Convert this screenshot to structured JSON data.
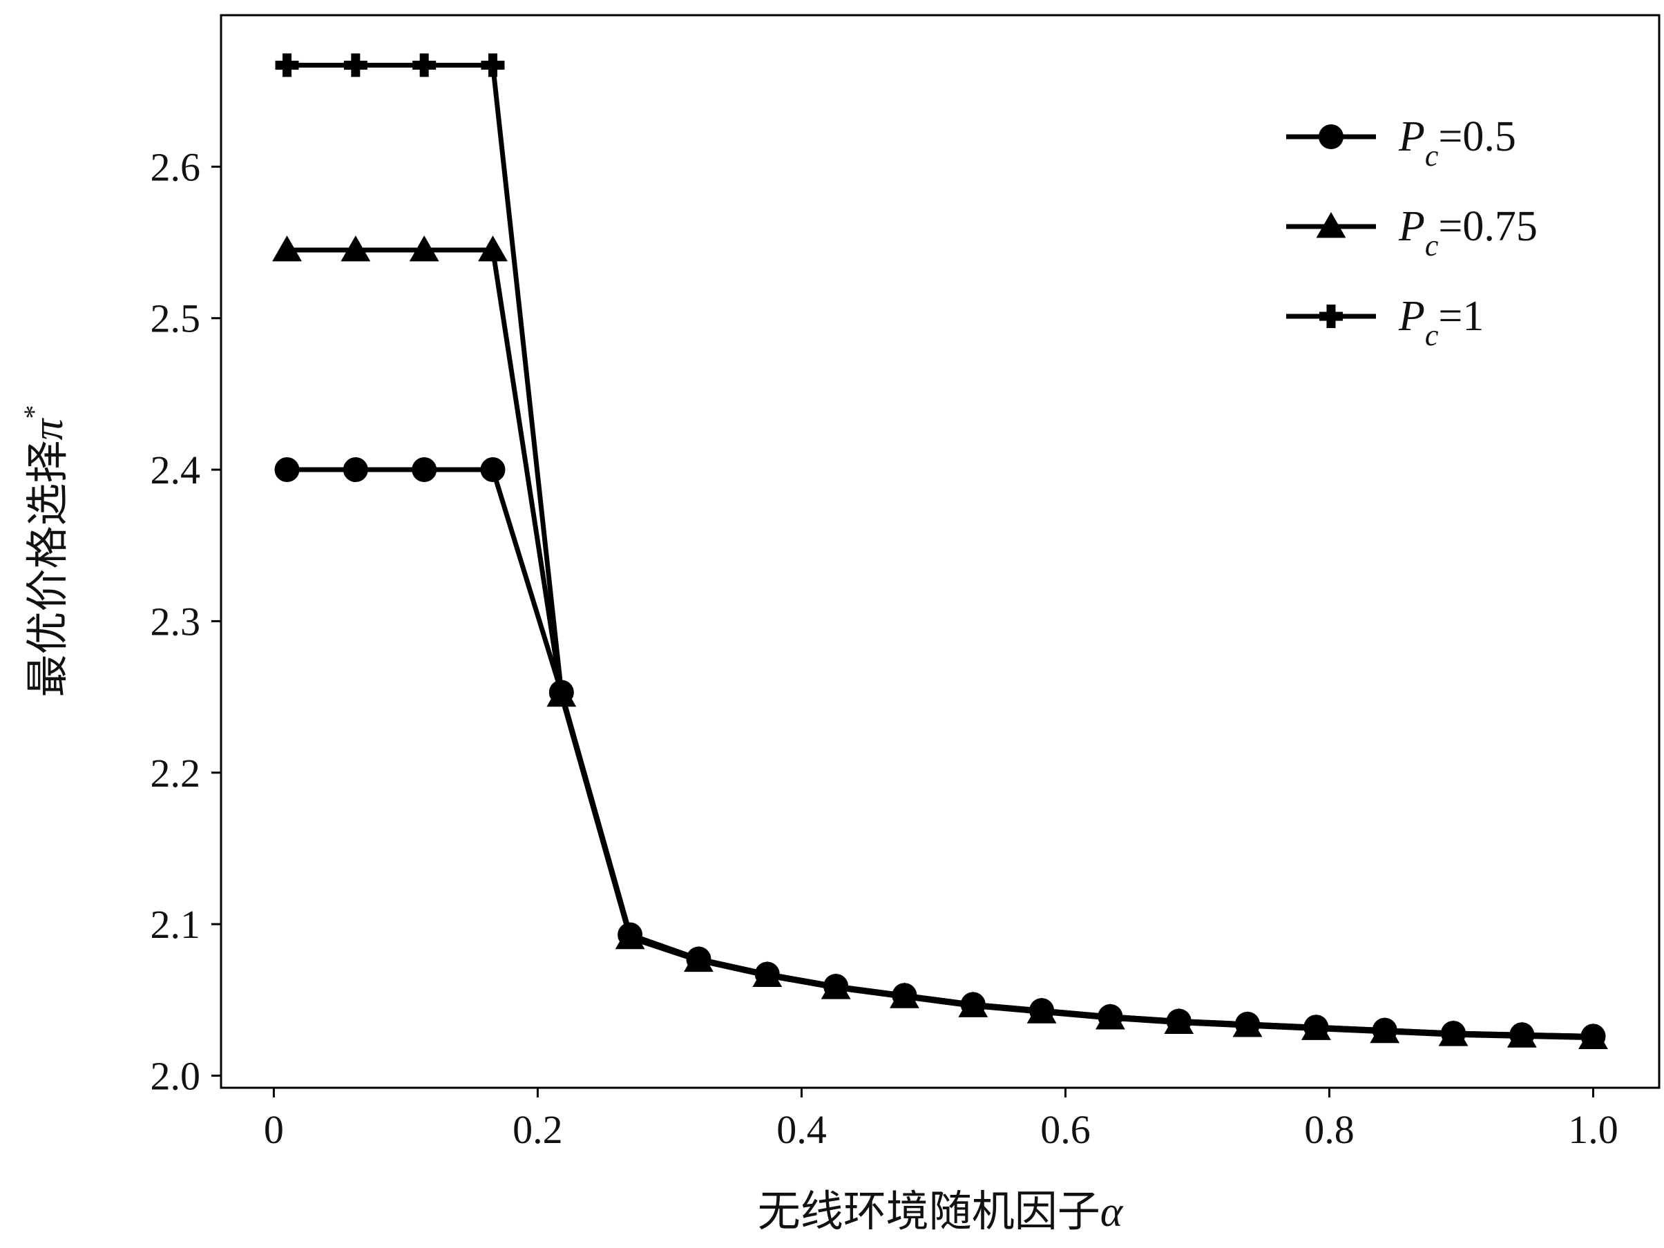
{
  "chart_data": {
    "type": "line",
    "title": "",
    "xlabel": "无线环境随机因子",
    "xlabel_symbol": "α",
    "ylabel": "最优价格选择",
    "ylabel_symbol": "π",
    "ylabel_superscript": "*",
    "xlim": [
      -0.04,
      1.05
    ],
    "ylim": [
      1.992,
      2.7
    ],
    "xticks": [
      0,
      0.2,
      0.4,
      0.6,
      0.8,
      1.0
    ],
    "xtick_labels": [
      "0",
      "0.2",
      "0.4",
      "0.6",
      "0.8",
      "1.0"
    ],
    "yticks": [
      2.0,
      2.1,
      2.2,
      2.3,
      2.4,
      2.5,
      2.6
    ],
    "ytick_labels": [
      "2.0",
      "2.1",
      "2.2",
      "2.3",
      "2.4",
      "2.5",
      "2.6"
    ],
    "grid": false,
    "legend_position": "top-right",
    "line_color": "#000000",
    "x": [
      0.01,
      0.062,
      0.114,
      0.166,
      0.218,
      0.27,
      0.322,
      0.374,
      0.426,
      0.478,
      0.53,
      0.582,
      0.634,
      0.686,
      0.738,
      0.79,
      0.842,
      0.894,
      0.946,
      1.0
    ],
    "series": [
      {
        "name": "P_c=0.5",
        "legend_symbol": "P",
        "legend_subscript": "c",
        "legend_value": "=0.5",
        "marker": "circle",
        "values": [
          2.4,
          2.4,
          2.4,
          2.4,
          2.253,
          2.093,
          2.077,
          2.067,
          2.059,
          2.053,
          2.047,
          2.043,
          2.039,
          2.036,
          2.034,
          2.032,
          2.03,
          2.028,
          2.027,
          2.026
        ]
      },
      {
        "name": "P_c=0.75",
        "legend_symbol": "P",
        "legend_subscript": "c",
        "legend_value": "=0.75",
        "marker": "triangle",
        "values": [
          2.545,
          2.545,
          2.545,
          2.545,
          2.251,
          2.091,
          2.076,
          2.066,
          2.058,
          2.052,
          2.046,
          2.042,
          2.038,
          2.035,
          2.033,
          2.031,
          2.029,
          2.027,
          2.026,
          2.025
        ]
      },
      {
        "name": "P_c=1",
        "legend_symbol": "P",
        "legend_subscript": "c",
        "legend_value": "=1",
        "marker": "plus",
        "values": [
          2.667,
          2.667,
          2.667,
          2.667,
          2.253,
          2.093,
          2.077,
          2.067,
          2.059,
          2.053,
          2.047,
          2.043,
          2.039,
          2.036,
          2.034,
          2.032,
          2.03,
          2.028,
          2.027,
          2.026
        ]
      }
    ]
  }
}
